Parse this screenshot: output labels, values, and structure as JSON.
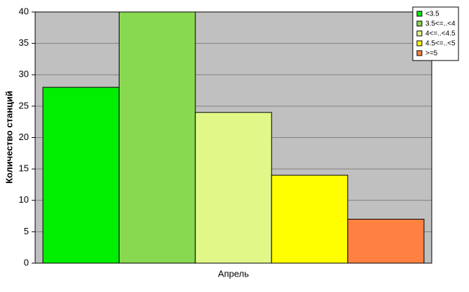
{
  "chart_data": {
    "type": "bar",
    "ylabel": "Количество станций",
    "categories": [
      "Апрель"
    ],
    "series": [
      {
        "name": "<3.5",
        "color": "#00ee00",
        "values": [
          28
        ]
      },
      {
        "name": "3.5<=..<4",
        "color": "#88d850",
        "values": [
          40
        ]
      },
      {
        "name": "4<=..<4.5",
        "color": "#e0f888",
        "values": [
          24
        ]
      },
      {
        "name": "4.5<=..<5",
        "color": "#ffff00",
        "values": [
          14
        ]
      },
      {
        "name": ">=5",
        "color": "#ff8040",
        "values": [
          7
        ]
      }
    ],
    "ylim": [
      0,
      40
    ],
    "yticks": [
      0,
      5,
      10,
      15,
      20,
      25,
      30,
      35,
      40
    ],
    "grid": true
  }
}
